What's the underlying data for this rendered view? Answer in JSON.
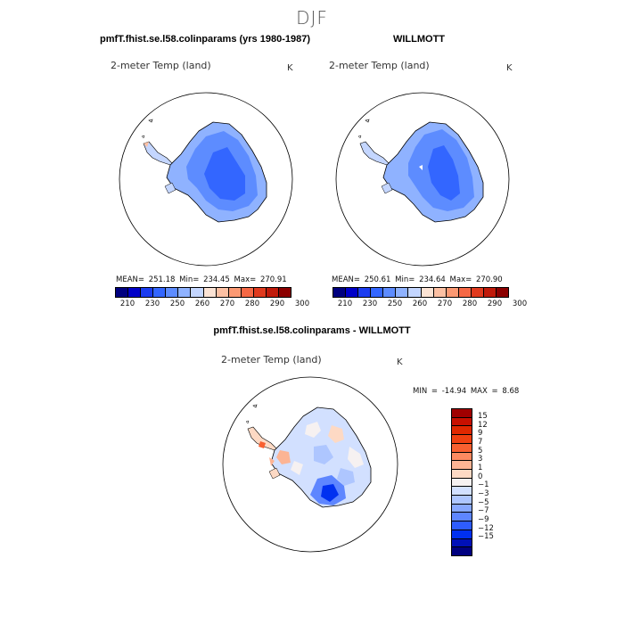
{
  "figure": {
    "season_title": "DJF"
  },
  "panel_left": {
    "title": "pmfT.fhist.se.l58.colinparams (yrs 1980-1987)",
    "variable": "2-meter Temp (land)",
    "units": "K",
    "stats": {
      "mean_label": "MEAN=",
      "mean": "251.18",
      "min_label": "Min=",
      "min": "234.45",
      "max_label": "Max=",
      "max": "270.91"
    }
  },
  "panel_right": {
    "title": "WILLMOTT",
    "variable": "2-meter Temp (land)",
    "units": "K",
    "stats": {
      "mean_label": "MEAN=",
      "mean": "250.61",
      "min_label": "Min=",
      "min": "234.64",
      "max_label": "Max=",
      "max": "270.90"
    }
  },
  "panel_diff": {
    "title": "pmfT.fhist.se.l58.colinparams - WILLMOTT",
    "variable": "2-meter Temp (land)",
    "units": "K",
    "stats": {
      "min_label": "MIN =",
      "min": "-14.94",
      "max_label": "MAX =",
      "max": "8.68"
    }
  },
  "abs_colorbar": {
    "tick_labels": [
      "210",
      "230",
      "250",
      "260",
      "270",
      "280",
      "290",
      "300"
    ],
    "colors": [
      "#00007f",
      "#0000c8",
      "#1b3cf0",
      "#3366ff",
      "#5d8cff",
      "#8fb2ff",
      "#c4d6ff",
      "#fbe3d4",
      "#fcc0a3",
      "#fb9973",
      "#f56845",
      "#e03a1e",
      "#c01a0a",
      "#8b0000"
    ]
  },
  "diff_colorbar": {
    "tick_labels": [
      "15",
      "12",
      "9",
      "7",
      "5",
      "3",
      "1",
      "0",
      "−1",
      "−3",
      "−5",
      "−7",
      "−9",
      "−12",
      "−15"
    ],
    "colors": [
      "#a00000",
      "#c81000",
      "#e02800",
      "#f04010",
      "#f86030",
      "#fc8a60",
      "#fdb494",
      "#fdd9c4",
      "#f6f1f1",
      "#d2e0ff",
      "#aec6ff",
      "#88a8ff",
      "#5e86ff",
      "#2e5cff",
      "#0030f0",
      "#0010b8",
      "#000080"
    ]
  }
}
